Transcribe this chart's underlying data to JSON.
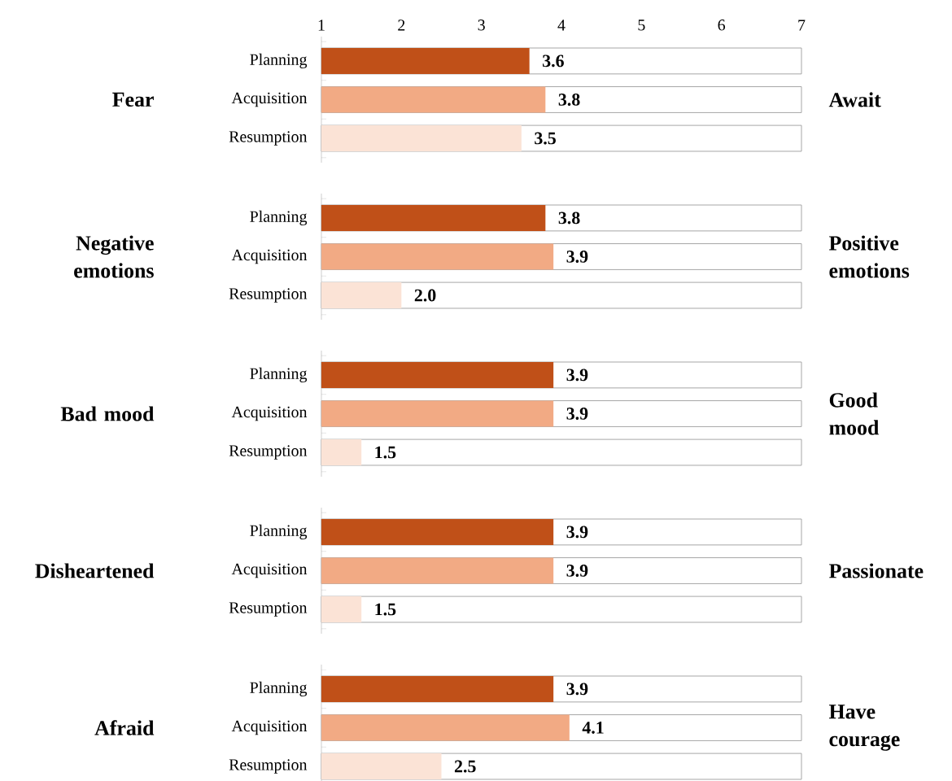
{
  "chart_data": [
    {
      "type": "bar",
      "orientation": "horizontal",
      "categories": [
        "Planning",
        "Acquisition",
        "Resumption"
      ],
      "values": [
        3.6,
        3.8,
        3.5
      ],
      "value_labels": [
        "3.6",
        "3.8",
        "3.5"
      ],
      "colors": [
        "#c05018",
        "#f2aa84",
        "#fbe3d6"
      ],
      "xlim": [
        1,
        7
      ],
      "xticks": [
        1,
        2,
        3,
        4,
        5,
        6,
        7
      ],
      "ylabel": "Fear",
      "y2label": "Await"
    },
    {
      "type": "bar",
      "orientation": "horizontal",
      "categories": [
        "Planning",
        "Acquisition",
        "Resumption"
      ],
      "values": [
        3.8,
        3.9,
        2.0
      ],
      "value_labels": [
        "3.8",
        "3.9",
        "2.0"
      ],
      "colors": [
        "#c05018",
        "#f2aa84",
        "#fbe3d6"
      ],
      "xlim": [
        1,
        7
      ],
      "tick_labels": "y",
      "ylabel": "Negative emotions",
      "y2label": "Positive emotions"
    },
    {
      "type": "bar",
      "orientation": "horizontal",
      "categories": [
        "Planning",
        "Acquisition",
        "Resumption"
      ],
      "values": [
        3.9,
        3.9,
        1.5
      ],
      "value_labels": [
        "3.9",
        "3.9",
        "1.5"
      ],
      "colors": [
        "#c05018",
        "#f2aa84",
        "#fbe3d6"
      ],
      "xlim": [
        1,
        7
      ],
      "tick_labels": "y",
      "ylabel": "Bad mood",
      "y2label": "Good mood"
    },
    {
      "type": "bar",
      "orientation": "horizontal",
      "categories": [
        "Planning",
        "Acquisition",
        "Resumption"
      ],
      "values": [
        3.9,
        3.9,
        1.5
      ],
      "value_labels": [
        "3.9",
        "3.9",
        "1.5"
      ],
      "colors": [
        "#c05018",
        "#f2aa84",
        "#fbe3d6"
      ],
      "xlim": [
        1,
        7
      ],
      "tick_labels": "y",
      "ylabel": "Disheartened",
      "y2label": "Passionate"
    },
    {
      "type": "bar",
      "orientation": "horizontal",
      "categories": [
        "Planning",
        "Acquisition",
        "Resumption"
      ],
      "values": [
        3.9,
        4.1,
        2.5
      ],
      "value_labels": [
        "3.9",
        "4.1",
        "2.5"
      ],
      "colors": [
        "#c05018",
        "#f2aa84",
        "#fbe3d6"
      ],
      "xlim": [
        1,
        7
      ],
      "tick_labels": "y",
      "ylabel": "Afraid",
      "y2label": "Have courage"
    }
  ]
}
